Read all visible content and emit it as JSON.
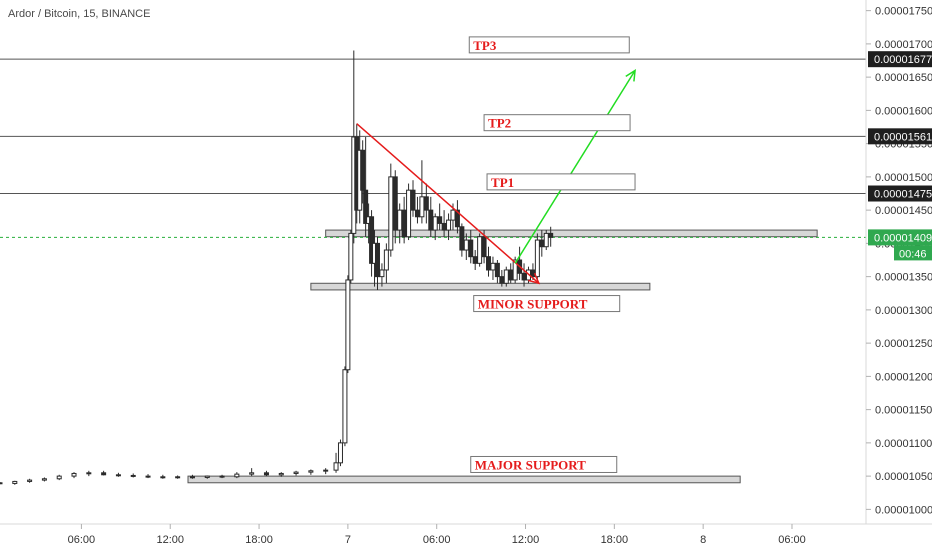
{
  "header": {
    "title": "Ardor / Bitcoin, 15, BINANCE"
  },
  "chart_data": {
    "type": "candlestick",
    "y_ticks": [
      "0.00001750",
      "0.00001700",
      "0.00001650",
      "0.00001600",
      "0.00001550",
      "0.00001500",
      "0.00001450",
      "0.00001400",
      "0.00001350",
      "0.00001300",
      "0.00001250",
      "0.00001200",
      "0.00001150",
      "0.00001100",
      "0.00001050",
      "0.00001000"
    ],
    "y_tick_values": [
      1.75e-05,
      1.7e-05,
      1.65e-05,
      1.6e-05,
      1.55e-05,
      1.5e-05,
      1.45e-05,
      1.4e-05,
      1.35e-05,
      1.3e-05,
      1.25e-05,
      1.2e-05,
      1.15e-05,
      1.1e-05,
      1.05e-05,
      1e-05
    ],
    "x_ticks": [
      "06:00",
      "12:00",
      "18:00",
      "7",
      "06:00",
      "12:00",
      "18:00",
      "8",
      "06:00"
    ],
    "x_tick_hours": [
      6,
      12,
      18,
      24,
      30,
      36,
      42,
      48,
      54
    ],
    "x_range_hours": [
      0.5,
      59
    ],
    "y_range": [
      9.78e-06,
      1.766e-05
    ],
    "price_labels": [
      {
        "label": "0.00001677",
        "value": 1.677e-05,
        "style": "dark"
      },
      {
        "label": "0.00001561",
        "value": 1.561e-05,
        "style": "dark"
      },
      {
        "label": "0.00001475",
        "value": 1.475e-05,
        "style": "dark"
      },
      {
        "label": "0.00001409",
        "value": 1.409e-05,
        "style": "green"
      }
    ],
    "countdown": "00:46",
    "horizontal_lines": [
      1.677e-05,
      1.561e-05,
      1.475e-05
    ],
    "current_price": 1.409e-05,
    "zones": [
      {
        "from_hour": 13.2,
        "to_hour": 50.5,
        "low": 1.04e-05,
        "high": 1.05e-05
      },
      {
        "from_hour": 22.5,
        "to_hour": 55.7,
        "low": 1.41e-05,
        "high": 1.42e-05
      },
      {
        "from_hour": 21.5,
        "to_hour": 44.4,
        "low": 1.33e-05,
        "high": 1.34e-05
      }
    ],
    "annotations": [
      {
        "text": "TP3",
        "value": 1.697e-05
      },
      {
        "text": "TP2",
        "value": 1.58e-05
      },
      {
        "text": "TP1",
        "value": 1.491e-05
      },
      {
        "text": "MINOR SUPPORT",
        "value": 1.308e-05
      },
      {
        "text": "MAJOR SUPPORT",
        "value": 1.066e-05
      }
    ],
    "trendlines": [
      {
        "color": "#e51b1b",
        "from": [
          24.6,
          1.58e-05
        ],
        "to": [
          36.9,
          1.34e-05
        ]
      },
      {
        "color": "#22dd22",
        "from": [
          35.3,
          1.37e-05
        ],
        "to": [
          43.4,
          1.66e-05
        ]
      }
    ],
    "candles_hourly": [
      {
        "h": 0.5,
        "o": 1.04e-05,
        "hi": 1.041e-05,
        "l": 1.038e-05,
        "c": 1.039e-05
      },
      {
        "h": 1.5,
        "o": 1.039e-05,
        "hi": 1.043e-05,
        "l": 1.037e-05,
        "c": 1.042e-05
      },
      {
        "h": 2.5,
        "o": 1.042e-05,
        "hi": 1.046e-05,
        "l": 1.04e-05,
        "c": 1.044e-05
      },
      {
        "h": 3.5,
        "o": 1.044e-05,
        "hi": 1.048e-05,
        "l": 1.042e-05,
        "c": 1.046e-05
      },
      {
        "h": 4.5,
        "o": 1.046e-05,
        "hi": 1.052e-05,
        "l": 1.044e-05,
        "c": 1.05e-05
      },
      {
        "h": 5.5,
        "o": 1.05e-05,
        "hi": 1.056e-05,
        "l": 1.047e-05,
        "c": 1.054e-05
      },
      {
        "h": 6.5,
        "o": 1.054e-05,
        "hi": 1.058e-05,
        "l": 1.05e-05,
        "c": 1.055e-05
      },
      {
        "h": 7.5,
        "o": 1.055e-05,
        "hi": 1.058e-05,
        "l": 1.051e-05,
        "c": 1.052e-05
      },
      {
        "h": 8.5,
        "o": 1.052e-05,
        "hi": 1.055e-05,
        "l": 1.049e-05,
        "c": 1.051e-05
      },
      {
        "h": 9.5,
        "o": 1.051e-05,
        "hi": 1.054e-05,
        "l": 1.048e-05,
        "c": 1.05e-05
      },
      {
        "h": 10.5,
        "o": 1.05e-05,
        "hi": 1.053e-05,
        "l": 1.047e-05,
        "c": 1.049e-05
      },
      {
        "h": 11.5,
        "o": 1.049e-05,
        "hi": 1.052e-05,
        "l": 1.046e-05,
        "c": 1.048e-05
      },
      {
        "h": 12.5,
        "o": 1.048e-05,
        "hi": 1.051e-05,
        "l": 1.046e-05,
        "c": 1.049e-05
      },
      {
        "h": 13.5,
        "o": 1.049e-05,
        "hi": 1.052e-05,
        "l": 1.046e-05,
        "c": 1.048e-05
      },
      {
        "h": 14.5,
        "o": 1.048e-05,
        "hi": 1.051e-05,
        "l": 1.046e-05,
        "c": 1.05e-05
      },
      {
        "h": 15.5,
        "o": 1.05e-05,
        "hi": 1.052e-05,
        "l": 1.047e-05,
        "c": 1.049e-05
      },
      {
        "h": 16.5,
        "o": 1.049e-05,
        "hi": 1.056e-05,
        "l": 1.047e-05,
        "c": 1.053e-05
      },
      {
        "h": 17.5,
        "o": 1.053e-05,
        "hi": 1.062e-05,
        "l": 1.05e-05,
        "c": 1.055e-05
      },
      {
        "h": 18.5,
        "o": 1.055e-05,
        "hi": 1.058e-05,
        "l": 1.05e-05,
        "c": 1.052e-05
      },
      {
        "h": 19.5,
        "o": 1.052e-05,
        "hi": 1.056e-05,
        "l": 1.049e-05,
        "c": 1.054e-05
      },
      {
        "h": 20.5,
        "o": 1.054e-05,
        "hi": 1.058e-05,
        "l": 1.051e-05,
        "c": 1.056e-05
      },
      {
        "h": 21.5,
        "o": 1.056e-05,
        "hi": 1.06e-05,
        "l": 1.052e-05,
        "c": 1.058e-05
      },
      {
        "h": 22.5,
        "o": 1.058e-05,
        "hi": 1.062e-05,
        "l": 1.053e-05,
        "c": 1.059e-05
      },
      {
        "h": 23.2,
        "o": 1.059e-05,
        "hi": 1.085e-05,
        "l": 1.055e-05,
        "c": 1.07e-05
      },
      {
        "h": 23.5,
        "o": 1.07e-05,
        "hi": 1.105e-05,
        "l": 1.065e-05,
        "c": 1.1e-05
      },
      {
        "h": 23.8,
        "o": 1.1e-05,
        "hi": 1.215e-05,
        "l": 1.095e-05,
        "c": 1.21e-05
      },
      {
        "h": 24.0,
        "o": 1.21e-05,
        "hi": 1.352e-05,
        "l": 1.205e-05,
        "c": 1.345e-05
      },
      {
        "h": 24.2,
        "o": 1.345e-05,
        "hi": 1.42e-05,
        "l": 1.34e-05,
        "c": 1.415e-05
      },
      {
        "h": 24.4,
        "o": 1.415e-05,
        "hi": 1.69e-05,
        "l": 1.4e-05,
        "c": 1.56e-05
      },
      {
        "h": 24.6,
        "o": 1.56e-05,
        "hi": 1.58e-05,
        "l": 1.43e-05,
        "c": 1.45e-05
      },
      {
        "h": 24.8,
        "o": 1.45e-05,
        "hi": 1.57e-05,
        "l": 1.43e-05,
        "c": 1.54e-05
      },
      {
        "h": 25.0,
        "o": 1.54e-05,
        "hi": 1.555e-05,
        "l": 1.46e-05,
        "c": 1.48e-05
      },
      {
        "h": 25.2,
        "o": 1.48e-05,
        "hi": 1.56e-05,
        "l": 1.41e-05,
        "c": 1.43e-05
      },
      {
        "h": 25.4,
        "o": 1.43e-05,
        "hi": 1.46e-05,
        "l": 1.4e-05,
        "c": 1.44e-05
      },
      {
        "h": 25.6,
        "o": 1.44e-05,
        "hi": 1.45e-05,
        "l": 1.35e-05,
        "c": 1.37e-05
      },
      {
        "h": 25.8,
        "o": 1.37e-05,
        "hi": 1.42e-05,
        "l": 1.335e-05,
        "c": 1.4e-05
      },
      {
        "h": 26.0,
        "o": 1.4e-05,
        "hi": 1.41e-05,
        "l": 1.33e-05,
        "c": 1.35e-05
      },
      {
        "h": 26.3,
        "o": 1.35e-05,
        "hi": 1.37e-05,
        "l": 1.335e-05,
        "c": 1.36e-05
      },
      {
        "h": 26.6,
        "o": 1.36e-05,
        "hi": 1.4e-05,
        "l": 1.34e-05,
        "c": 1.39e-05
      },
      {
        "h": 26.9,
        "o": 1.39e-05,
        "hi": 1.52e-05,
        "l": 1.38e-05,
        "c": 1.5e-05
      },
      {
        "h": 27.2,
        "o": 1.5e-05,
        "hi": 1.51e-05,
        "l": 1.4e-05,
        "c": 1.42e-05
      },
      {
        "h": 27.5,
        "o": 1.42e-05,
        "hi": 1.46e-05,
        "l": 1.4e-05,
        "c": 1.45e-05
      },
      {
        "h": 27.8,
        "o": 1.45e-05,
        "hi": 1.47e-05,
        "l": 1.4e-05,
        "c": 1.41e-05
      },
      {
        "h": 28.1,
        "o": 1.41e-05,
        "hi": 1.49e-05,
        "l": 1.405e-05,
        "c": 1.48e-05
      },
      {
        "h": 28.4,
        "o": 1.48e-05,
        "hi": 1.495e-05,
        "l": 1.44e-05,
        "c": 1.45e-05
      },
      {
        "h": 28.7,
        "o": 1.45e-05,
        "hi": 1.47e-05,
        "l": 1.43e-05,
        "c": 1.44e-05
      },
      {
        "h": 29.0,
        "o": 1.44e-05,
        "hi": 1.525e-05,
        "l": 1.43e-05,
        "c": 1.47e-05
      },
      {
        "h": 29.3,
        "o": 1.47e-05,
        "hi": 1.49e-05,
        "l": 1.43e-05,
        "c": 1.45e-05
      },
      {
        "h": 29.6,
        "o": 1.45e-05,
        "hi": 1.47e-05,
        "l": 1.41e-05,
        "c": 1.42e-05
      },
      {
        "h": 29.9,
        "o": 1.42e-05,
        "hi": 1.445e-05,
        "l": 1.405e-05,
        "c": 1.44e-05
      },
      {
        "h": 30.2,
        "o": 1.44e-05,
        "hi": 1.46e-05,
        "l": 1.42e-05,
        "c": 1.43e-05
      },
      {
        "h": 30.5,
        "o": 1.43e-05,
        "hi": 1.45e-05,
        "l": 1.41e-05,
        "c": 1.42e-05
      },
      {
        "h": 30.8,
        "o": 1.42e-05,
        "hi": 1.445e-05,
        "l": 1.405e-05,
        "c": 1.435e-05
      },
      {
        "h": 31.1,
        "o": 1.435e-05,
        "hi": 1.46e-05,
        "l": 1.42e-05,
        "c": 1.45e-05
      },
      {
        "h": 31.4,
        "o": 1.45e-05,
        "hi": 1.465e-05,
        "l": 1.415e-05,
        "c": 1.425e-05
      },
      {
        "h": 31.7,
        "o": 1.425e-05,
        "hi": 1.43e-05,
        "l": 1.38e-05,
        "c": 1.39e-05
      },
      {
        "h": 32.0,
        "o": 1.39e-05,
        "hi": 1.415e-05,
        "l": 1.375e-05,
        "c": 1.405e-05
      },
      {
        "h": 32.3,
        "o": 1.405e-05,
        "hi": 1.42e-05,
        "l": 1.37e-05,
        "c": 1.38e-05
      },
      {
        "h": 32.6,
        "o": 1.38e-05,
        "hi": 1.39e-05,
        "l": 1.36e-05,
        "c": 1.37e-05
      },
      {
        "h": 32.9,
        "o": 1.37e-05,
        "hi": 1.415e-05,
        "l": 1.365e-05,
        "c": 1.41e-05
      },
      {
        "h": 33.2,
        "o": 1.41e-05,
        "hi": 1.42e-05,
        "l": 1.37e-05,
        "c": 1.38e-05
      },
      {
        "h": 33.5,
        "o": 1.38e-05,
        "hi": 1.395e-05,
        "l": 1.35e-05,
        "c": 1.36e-05
      },
      {
        "h": 33.8,
        "o": 1.36e-05,
        "hi": 1.38e-05,
        "l": 1.345e-05,
        "c": 1.37e-05
      },
      {
        "h": 34.1,
        "o": 1.37e-05,
        "hi": 1.375e-05,
        "l": 1.34e-05,
        "c": 1.35e-05
      },
      {
        "h": 34.4,
        "o": 1.35e-05,
        "hi": 1.36e-05,
        "l": 1.335e-05,
        "c": 1.34e-05
      },
      {
        "h": 34.7,
        "o": 1.34e-05,
        "hi": 1.365e-05,
        "l": 1.335e-05,
        "c": 1.36e-05
      },
      {
        "h": 35.0,
        "o": 1.36e-05,
        "hi": 1.37e-05,
        "l": 1.34e-05,
        "c": 1.345e-05
      },
      {
        "h": 35.3,
        "o": 1.345e-05,
        "hi": 1.38e-05,
        "l": 1.34e-05,
        "c": 1.375e-05
      },
      {
        "h": 35.6,
        "o": 1.375e-05,
        "hi": 1.395e-05,
        "l": 1.345e-05,
        "c": 1.355e-05
      },
      {
        "h": 35.9,
        "o": 1.355e-05,
        "hi": 1.37e-05,
        "l": 1.335e-05,
        "c": 1.345e-05
      },
      {
        "h": 36.2,
        "o": 1.345e-05,
        "hi": 1.365e-05,
        "l": 1.34e-05,
        "c": 1.36e-05
      },
      {
        "h": 36.5,
        "o": 1.36e-05,
        "hi": 1.37e-05,
        "l": 1.345e-05,
        "c": 1.35e-05
      },
      {
        "h": 36.8,
        "o": 1.35e-05,
        "hi": 1.415e-05,
        "l": 1.345e-05,
        "c": 1.405e-05
      },
      {
        "h": 37.1,
        "o": 1.405e-05,
        "hi": 1.42e-05,
        "l": 1.38e-05,
        "c": 1.395e-05
      },
      {
        "h": 37.4,
        "o": 1.395e-05,
        "hi": 1.42e-05,
        "l": 1.39e-05,
        "c": 1.415e-05
      },
      {
        "h": 37.7,
        "o": 1.415e-05,
        "hi": 1.425e-05,
        "l": 1.395e-05,
        "c": 1.409e-05
      }
    ]
  }
}
